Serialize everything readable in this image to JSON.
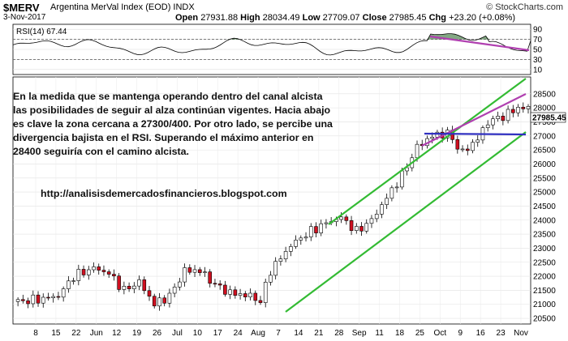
{
  "header": {
    "symbol": "$MERV",
    "name": "Argentina MerVal Index (EOD)",
    "exchange": "INDX",
    "date": "3-Nov-2017",
    "open_label": "Open",
    "open": "27931.88",
    "high_label": "High",
    "high": "28034.49",
    "low_label": "Low",
    "low": "27709.07",
    "close_label": "Close",
    "close": "27985.45",
    "chg_label": "Chg",
    "chg": "+23.20 (+0.08%)",
    "brand": "© StockCharts.com"
  },
  "annotation": {
    "text": "En la medida que se mantenga operando dentro del canal alcista las posibilidades de seguir al alza continúan vigentes. Hacia abajo es clave la zona cercana a 27300/400. Por otro lado, se percibe una divergencia bajista en el RSI. Superando el máximo anterior en 28400 seguiría con el camino alcista.",
    "url": "http://analisisdemercadosfinancieros.blogspot.com"
  },
  "chart_data": [
    {
      "type": "line",
      "label": "RSI(14) 67.44",
      "value": 67.44,
      "ylim": [
        0,
        100
      ],
      "y_ticks": [
        "90",
        "70",
        "50",
        "30",
        "10"
      ],
      "levels": [
        70,
        30
      ],
      "colors": {
        "line": "#000000",
        "fill": "#5a8a5a",
        "trend": "#b040b0"
      }
    },
    {
      "type": "candlestick",
      "ylim": [
        20300,
        29100
      ],
      "y_ticks": [
        "28500",
        "28000",
        "27500",
        "27000",
        "26500",
        "26000",
        "25500",
        "25000",
        "24500",
        "24000",
        "23500",
        "23000",
        "22500",
        "22000",
        "21500",
        "21000",
        "20500"
      ],
      "last_price": "27985.45",
      "x_ticks": [
        "8",
        "15",
        "22",
        "Jun",
        "12",
        "19",
        "26",
        "Jul",
        "10",
        "17",
        "24",
        "Aug",
        "7",
        "14",
        "21",
        "28",
        "Sep",
        "11",
        "18",
        "25",
        "Oct",
        "9",
        "16",
        "23",
        "Nov"
      ],
      "colors": {
        "up": "#ffffff",
        "down": "#d01020",
        "wick": "#000000",
        "channel": "#33bb33",
        "resistance": "#b040b0",
        "support": "#3030c0"
      }
    }
  ]
}
